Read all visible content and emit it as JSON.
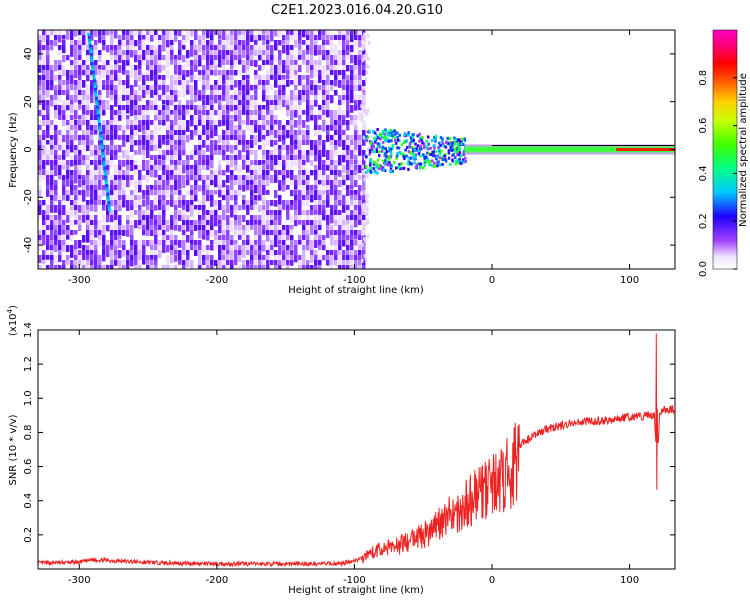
{
  "figure": {
    "title": "C2E1.2023.016.04.20.G10"
  },
  "chart_data": [
    {
      "type": "heatmap",
      "xlabel": "Height of straight line (km)",
      "ylabel": "Frequency (Hz)",
      "xlim": [
        -330,
        133
      ],
      "ylim": [
        -50,
        50
      ],
      "xticks": [
        -300,
        -200,
        -100,
        0,
        100
      ],
      "yticks": [
        -40,
        -20,
        0,
        20,
        40
      ],
      "colorbar": {
        "label": "Normalized spectral amplitude",
        "range": [
          0.0,
          1.0
        ],
        "ticks": [
          0.0,
          0.2,
          0.4,
          0.6,
          0.8
        ],
        "tick_labels": [
          "0.0",
          "0.2",
          "0.4",
          "0.6",
          "0.8"
        ]
      },
      "features": {
        "noise_region": {
          "x_range": [
            -330,
            -93
          ],
          "y_range": [
            -50,
            50
          ]
        },
        "diagonal_track": {
          "from": [
            -293,
            48
          ],
          "to": [
            -278,
            -25
          ]
        },
        "signal_cluster": {
          "x_range": [
            -93,
            -20
          ],
          "y_range": [
            -10,
            10
          ]
        },
        "carrier_line": {
          "x_range": [
            -20,
            133
          ],
          "frequency": 0
        }
      }
    },
    {
      "type": "line",
      "xlabel": "Height of straight line (km)",
      "ylabel": "SNR (10 * v/v)",
      "y_multiplier": "(x10",
      "y_exponent": "4",
      "xlim": [
        -330,
        133
      ],
      "ylim": [
        0,
        14000
      ],
      "xticks": [
        -300,
        -200,
        -100,
        0,
        100
      ],
      "yticks": [
        2000,
        4000,
        6000,
        8000,
        10000,
        12000,
        14000
      ],
      "ytick_labels": [
        "0.2",
        "0.4",
        "0.6",
        "0.8",
        "1.0",
        "1.2",
        "1.4"
      ],
      "series": [
        {
          "color": "#ee2222",
          "x": [
            -330,
            -300,
            -290,
            -250,
            -200,
            -150,
            -110,
            -95,
            -90,
            -80,
            -70,
            -60,
            -50,
            -40,
            -30,
            -20,
            -15,
            -10,
            0,
            10,
            20,
            30,
            40,
            50,
            60,
            80,
            90,
            100,
            110,
            118,
            120,
            122,
            125,
            133
          ],
          "y": [
            350,
            400,
            550,
            380,
            300,
            300,
            320,
            600,
            1000,
            1300,
            1500,
            1800,
            2200,
            2800,
            3500,
            4200,
            4600,
            4800,
            5400,
            6200,
            7200,
            7800,
            8200,
            8400,
            8600,
            8700,
            8800,
            8900,
            8950,
            9000,
            6000,
            9200,
            9300,
            9350
          ]
        }
      ]
    }
  ]
}
